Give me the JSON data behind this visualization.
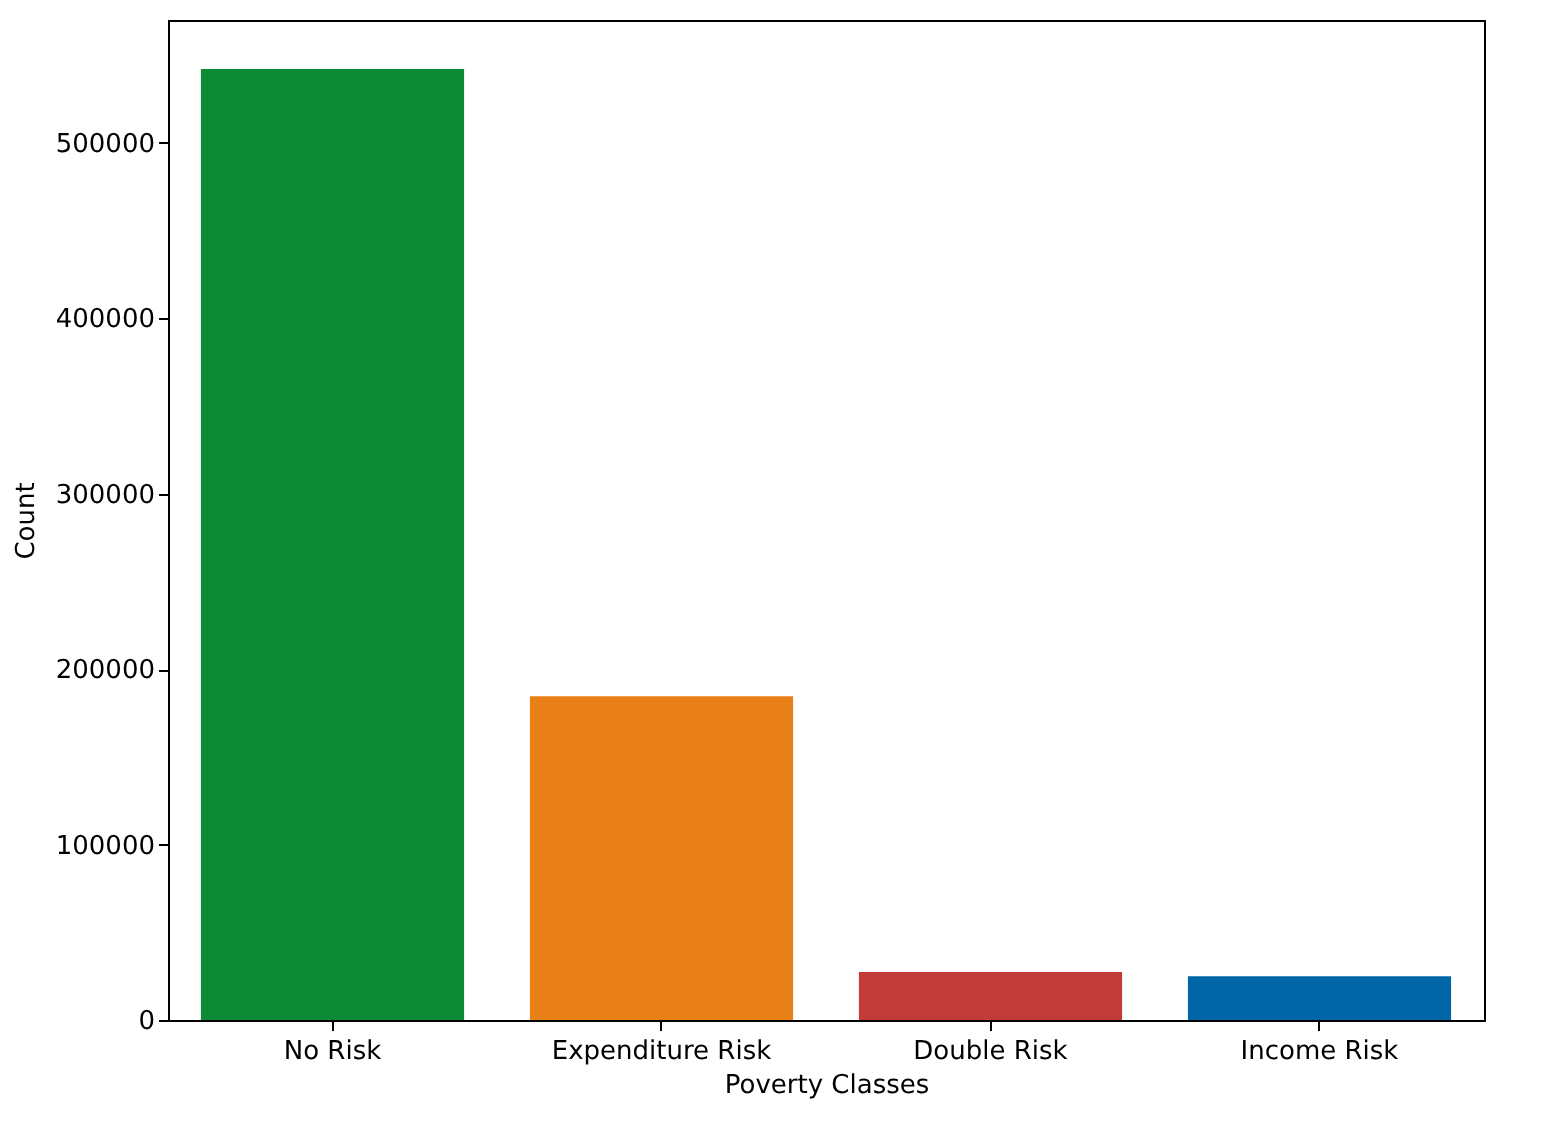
{
  "chart_data": {
    "type": "bar",
    "xlabel": "Poverty Classes",
    "ylabel": "Count",
    "categories": [
      "No Risk",
      "Expenditure Risk",
      "Double Risk",
      "Income Risk"
    ],
    "values": [
      542000,
      184500,
      27300,
      25000
    ],
    "colors": [
      "#0c8a35",
      "#e87f17",
      "#c23b3b",
      "#0066a8"
    ],
    "ylim": [
      0,
      570000
    ],
    "yticks": [
      0,
      100000,
      200000,
      300000,
      400000,
      500000
    ],
    "grid": false
  }
}
